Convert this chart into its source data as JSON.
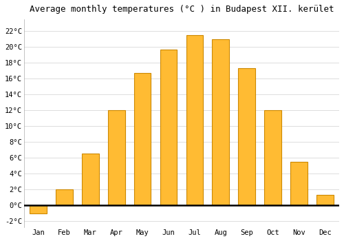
{
  "title": "Average monthly temperatures (°C ) in Budapest XII. kerület",
  "months": [
    "Jan",
    "Feb",
    "Mar",
    "Apr",
    "May",
    "Jun",
    "Jul",
    "Aug",
    "Sep",
    "Oct",
    "Nov",
    "Dec"
  ],
  "values": [
    -1.0,
    2.0,
    6.5,
    12.0,
    16.7,
    19.7,
    21.5,
    21.0,
    17.3,
    12.0,
    5.5,
    1.3
  ],
  "bar_color": "#FFBB33",
  "bar_edge_color": "#CC8800",
  "yticks": [
    -2,
    0,
    2,
    4,
    6,
    8,
    10,
    12,
    14,
    16,
    18,
    20,
    22
  ],
  "ylim": [
    -2.8,
    23.5
  ],
  "xlim": [
    -0.55,
    11.55
  ],
  "background_color": "#FFFFFF",
  "plot_bg_color": "#FFFFFF",
  "grid_color": "#DDDDDD",
  "title_fontsize": 9,
  "tick_fontsize": 7.5,
  "font_family": "monospace"
}
